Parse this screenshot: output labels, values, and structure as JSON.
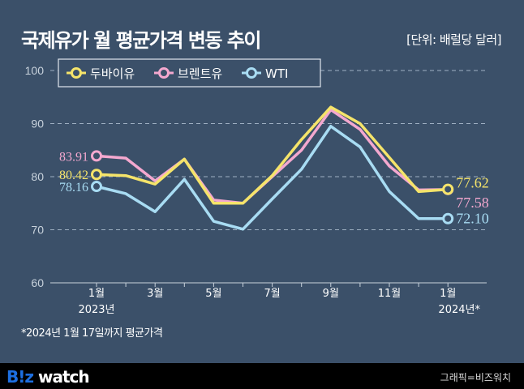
{
  "title": "국제유가 월 평균가격 변동 추이",
  "unit": "[단위: 배럴당 달러]",
  "footnote": "*2024년 1월 17일까지 평균가격",
  "footer": {
    "logo_blue": "B!z",
    "logo_white": " watch",
    "credit": "그래픽=비즈워치"
  },
  "colors": {
    "background": "#3b5069",
    "dubai": "#f5e46a",
    "brent": "#f4a8cf",
    "wti": "#a8dcf3"
  },
  "chart_data": {
    "type": "line",
    "x": [
      "2023-01",
      "2023-02",
      "2023-03",
      "2023-04",
      "2023-05",
      "2023-06",
      "2023-07",
      "2023-08",
      "2023-09",
      "2023-10",
      "2023-11",
      "2023-12",
      "2024-01"
    ],
    "xtick_labels": [
      "1월",
      "",
      "3월",
      "",
      "5월",
      "",
      "7월",
      "",
      "9월",
      "",
      "11월",
      "",
      "1월"
    ],
    "xtick_sublabels": [
      "2023년",
      "",
      "",
      "",
      "",
      "",
      "",
      "",
      "",
      "",
      "",
      "",
      "2024년*"
    ],
    "ylim": [
      60,
      100
    ],
    "yticks": [
      60,
      70,
      80,
      90,
      100
    ],
    "grid": true,
    "legend_position": "top-left",
    "series": [
      {
        "name": "두바이유",
        "key": "dubai",
        "values": [
          80.42,
          80.2,
          78.6,
          83.3,
          75.0,
          75.0,
          80.2,
          87.0,
          93.1,
          90.0,
          83.6,
          77.2,
          77.62
        ],
        "start_label": "80.42",
        "end_label": "77.62"
      },
      {
        "name": "브렌트유",
        "key": "brent",
        "values": [
          83.91,
          83.5,
          79.2,
          83.3,
          75.6,
          75.0,
          80.0,
          85.0,
          92.6,
          88.9,
          82.0,
          77.5,
          77.58
        ],
        "start_label": "83.91",
        "end_label": "77.58"
      },
      {
        "name": "WTI",
        "key": "wti",
        "values": [
          78.16,
          76.8,
          73.4,
          79.5,
          71.6,
          70.1,
          75.8,
          81.4,
          89.5,
          85.6,
          77.2,
          72.1,
          72.1
        ],
        "start_label": "78.16",
        "end_label": "72.10"
      }
    ]
  }
}
